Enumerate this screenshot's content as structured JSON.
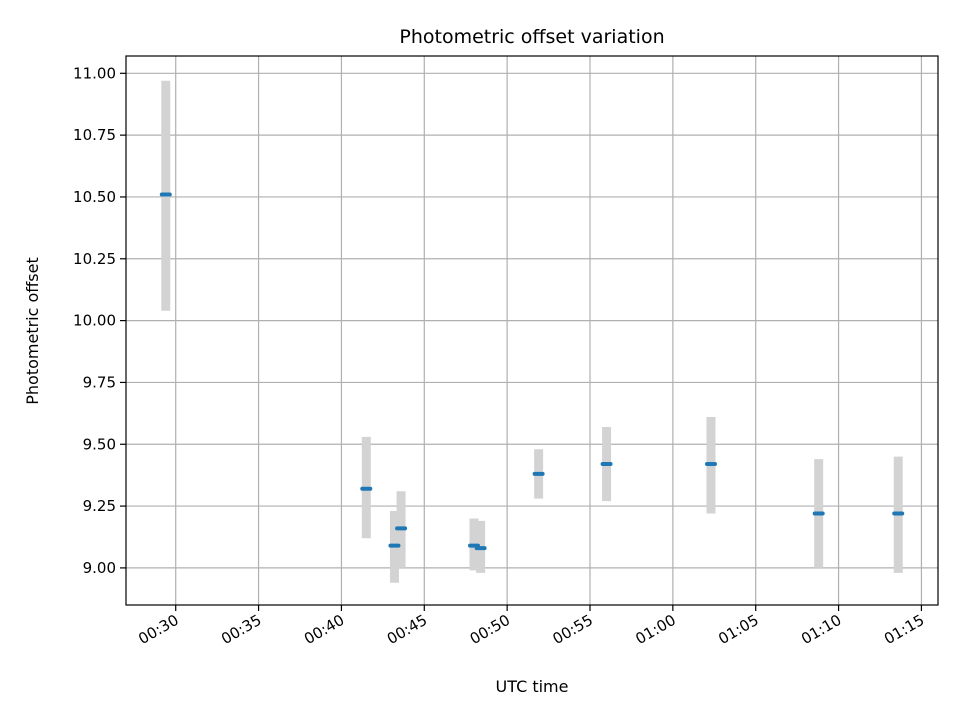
{
  "chart_data": {
    "type": "scatter",
    "title": "Photometric offset variation",
    "xlabel": "UTC time",
    "ylabel": "Photometric offset",
    "xlim": [
      "00:27:00",
      "01:16:00"
    ],
    "ylim": [
      8.85,
      11.07
    ],
    "x_ticks": [
      "00:30",
      "00:35",
      "00:40",
      "00:45",
      "00:50",
      "00:55",
      "01:00",
      "01:05",
      "01:10",
      "01:15"
    ],
    "y_ticks": [
      "9.00",
      "9.25",
      "9.50",
      "9.75",
      "10.00",
      "10.25",
      "10.50",
      "10.75",
      "11.00"
    ],
    "grid": true,
    "series": [
      {
        "marker_color": "#1f77b4",
        "errorbar_color": "#d3d3d3",
        "points": [
          {
            "x": "00:29:24",
            "y": 10.51,
            "yerr_low": 10.04,
            "yerr_high": 10.97
          },
          {
            "x": "00:41:30",
            "y": 9.32,
            "yerr_low": 9.12,
            "yerr_high": 9.53
          },
          {
            "x": "00:43:12",
            "y": 9.09,
            "yerr_low": 8.94,
            "yerr_high": 9.23
          },
          {
            "x": "00:43:36",
            "y": 9.16,
            "yerr_low": 9.0,
            "yerr_high": 9.31
          },
          {
            "x": "00:48:00",
            "y": 9.09,
            "yerr_low": 8.99,
            "yerr_high": 9.2
          },
          {
            "x": "00:48:24",
            "y": 9.08,
            "yerr_low": 8.98,
            "yerr_high": 9.19
          },
          {
            "x": "00:51:54",
            "y": 9.38,
            "yerr_low": 9.28,
            "yerr_high": 9.48
          },
          {
            "x": "00:56:00",
            "y": 9.42,
            "yerr_low": 9.27,
            "yerr_high": 9.57
          },
          {
            "x": "01:02:18",
            "y": 9.42,
            "yerr_low": 9.22,
            "yerr_high": 9.61
          },
          {
            "x": "01:08:48",
            "y": 9.22,
            "yerr_low": 9.0,
            "yerr_high": 9.44
          },
          {
            "x": "01:13:36",
            "y": 9.22,
            "yerr_low": 8.98,
            "yerr_high": 9.45
          }
        ]
      }
    ]
  }
}
